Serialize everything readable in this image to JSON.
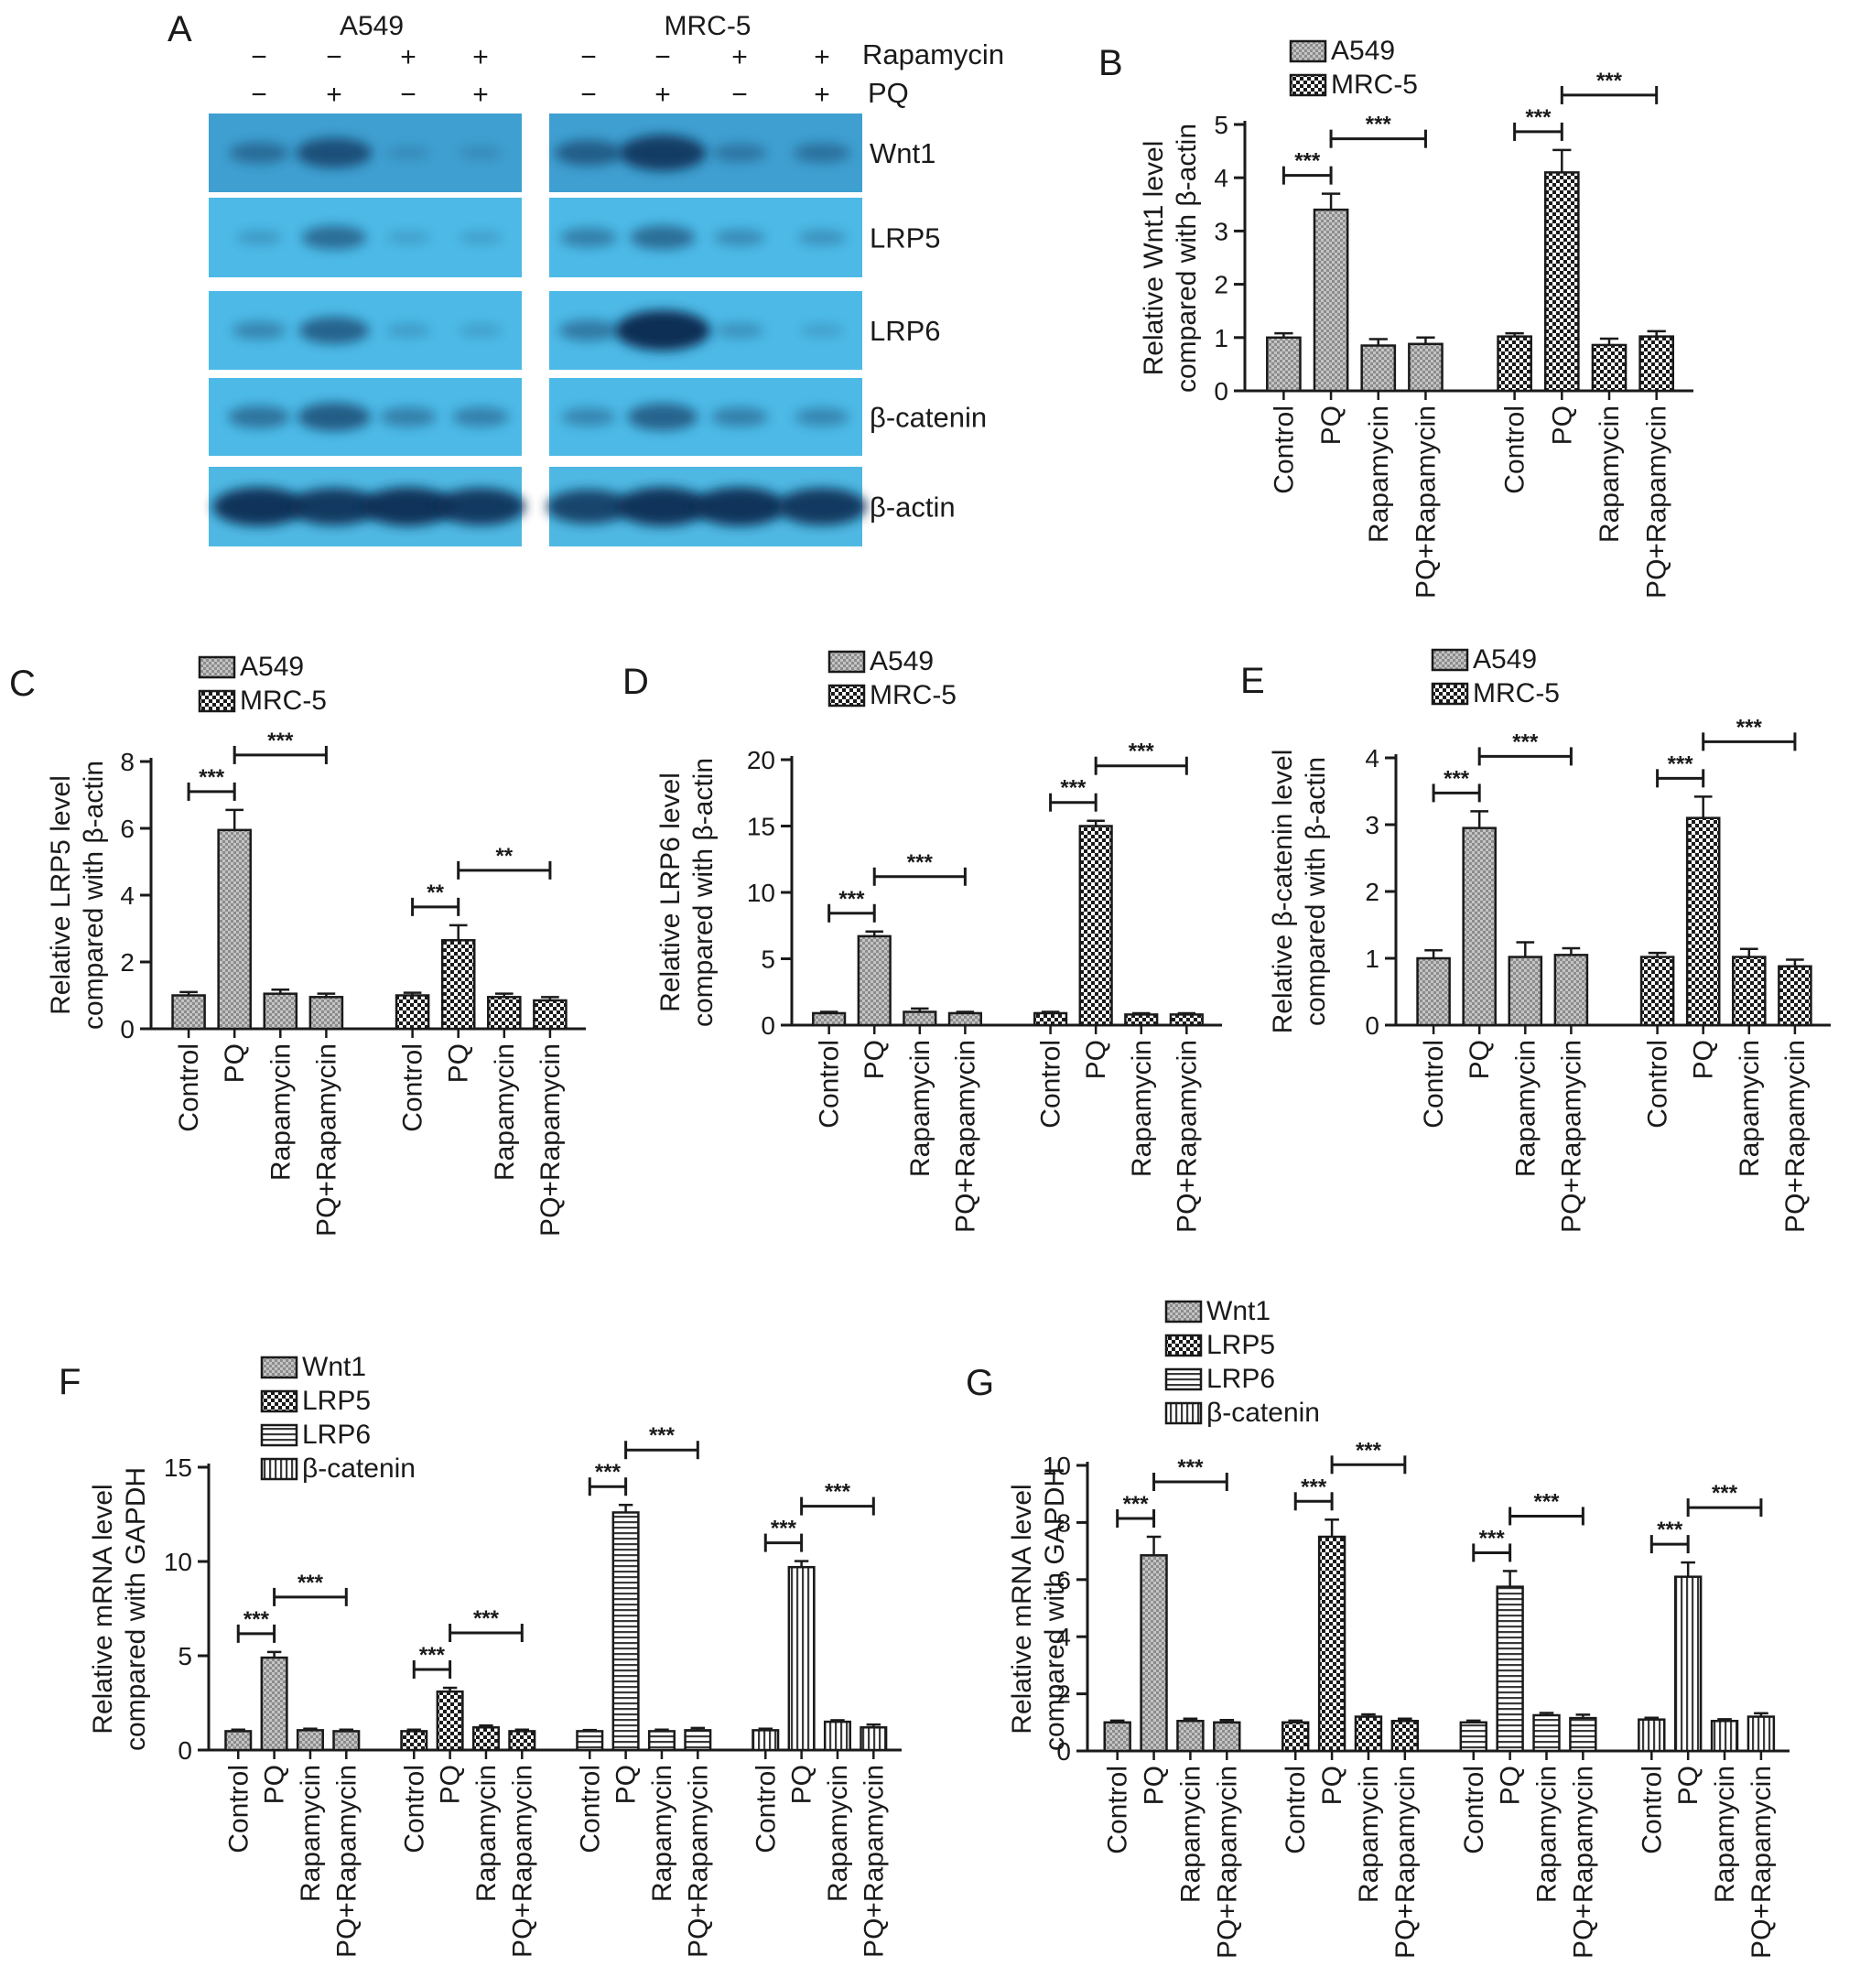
{
  "colors": {
    "bar_stroke": "#1a1a1a",
    "blot_bg": "#46b6e0",
    "blot_band": "#1a4a78"
  },
  "western_blot": {
    "panel_label": "A",
    "cell_lines": [
      "A549",
      "MRC-5"
    ],
    "rapamycin_label": "Rapamycin",
    "pq_label": "PQ",
    "rapamycin_signs": [
      "−",
      "−",
      "+",
      "+"
    ],
    "pq_signs": [
      "−",
      "+",
      "−",
      "+"
    ],
    "proteins": [
      "Wnt1",
      "LRP5",
      "LRP6",
      "β-catenin",
      "β-actin"
    ],
    "band_intensity": {
      "A549": [
        [
          0.35,
          0.65,
          0.05,
          0.05
        ],
        [
          0.1,
          0.45,
          0.05,
          0.05
        ],
        [
          0.25,
          0.55,
          0.08,
          0.05
        ],
        [
          0.4,
          0.6,
          0.3,
          0.3
        ],
        [
          0.95,
          0.9,
          0.95,
          0.9
        ]
      ],
      "MRC-5": [
        [
          0.5,
          0.85,
          0.25,
          0.3
        ],
        [
          0.3,
          0.45,
          0.2,
          0.15
        ],
        [
          0.35,
          1.0,
          0.15,
          0.05
        ],
        [
          0.25,
          0.55,
          0.3,
          0.25
        ],
        [
          0.8,
          0.95,
          0.95,
          0.9
        ]
      ]
    }
  },
  "chart_data": [
    {
      "panel": "B",
      "type": "bar",
      "ylabel_line1": "Relative Wnt1 level",
      "ylabel_line2": "compared with β-actin",
      "ylim": [
        0,
        5
      ],
      "yticks": [
        0,
        1,
        2,
        3,
        4,
        5
      ],
      "categories": [
        "Control",
        "PQ",
        "Rapamycin",
        "PQ+Rapamycin"
      ],
      "series": [
        {
          "name": "A549",
          "values": [
            1.0,
            3.4,
            0.85,
            0.88
          ],
          "errors": [
            0.08,
            0.3,
            0.12,
            0.12
          ]
        },
        {
          "name": "MRC-5",
          "values": [
            1.02,
            4.1,
            0.86,
            1.02
          ],
          "errors": [
            0.06,
            0.42,
            0.12,
            0.1
          ]
        }
      ],
      "significance": [
        {
          "group": 0,
          "from": 0,
          "to": 1,
          "label": "***",
          "level": 0
        },
        {
          "group": 0,
          "from": 1,
          "to": 3,
          "label": "***",
          "level": 1
        },
        {
          "group": 1,
          "from": 0,
          "to": 1,
          "label": "***",
          "level": 0
        },
        {
          "group": 1,
          "from": 1,
          "to": 3,
          "label": "***",
          "level": 1
        }
      ]
    },
    {
      "panel": "C",
      "type": "bar",
      "ylabel_line1": "Relative LRP5 level",
      "ylabel_line2": "compared with β-actin",
      "ylim": [
        0,
        8
      ],
      "yticks": [
        0,
        2,
        4,
        6,
        8
      ],
      "categories": [
        "Control",
        "PQ",
        "Rapamycin",
        "PQ+Rapamycin"
      ],
      "series": [
        {
          "name": "A549",
          "values": [
            1.0,
            5.95,
            1.05,
            0.95
          ],
          "errors": [
            0.1,
            0.6,
            0.12,
            0.1
          ]
        },
        {
          "name": "MRC-5",
          "values": [
            1.0,
            2.65,
            0.95,
            0.85
          ],
          "errors": [
            0.08,
            0.45,
            0.1,
            0.1
          ]
        }
      ],
      "significance": [
        {
          "group": 0,
          "from": 0,
          "to": 1,
          "label": "***",
          "level": 0
        },
        {
          "group": 0,
          "from": 1,
          "to": 3,
          "label": "***",
          "level": 1
        },
        {
          "group": 1,
          "from": 0,
          "to": 1,
          "label": "**",
          "level": 0
        },
        {
          "group": 1,
          "from": 1,
          "to": 3,
          "label": "**",
          "level": 1
        }
      ]
    },
    {
      "panel": "D",
      "type": "bar",
      "ylabel_line1": "Relative LRP6 level",
      "ylabel_line2": "compared with β-actin",
      "ylim": [
        0,
        20
      ],
      "yticks": [
        0,
        5,
        10,
        15,
        20
      ],
      "categories": [
        "Control",
        "PQ",
        "Rapamycin",
        "PQ+Rapamycin"
      ],
      "series": [
        {
          "name": "A549",
          "values": [
            0.9,
            6.7,
            1.0,
            0.9
          ],
          "errors": [
            0.1,
            0.35,
            0.25,
            0.1
          ]
        },
        {
          "name": "MRC-5",
          "values": [
            0.9,
            15.0,
            0.8,
            0.8
          ],
          "errors": [
            0.1,
            0.4,
            0.1,
            0.1
          ]
        }
      ],
      "significance": [
        {
          "group": 0,
          "from": 0,
          "to": 1,
          "label": "***",
          "level": 0
        },
        {
          "group": 0,
          "from": 1,
          "to": 3,
          "label": "***",
          "level": 1
        },
        {
          "group": 1,
          "from": 0,
          "to": 1,
          "label": "***",
          "level": 0
        },
        {
          "group": 1,
          "from": 1,
          "to": 3,
          "label": "***",
          "level": 1
        }
      ]
    },
    {
      "panel": "E",
      "type": "bar",
      "ylabel_line1": "Relative β-catenin level",
      "ylabel_line2": "compared with β-actin",
      "ylim": [
        0,
        4
      ],
      "yticks": [
        0,
        1,
        2,
        3,
        4
      ],
      "categories": [
        "Control",
        "PQ",
        "Rapamycin",
        "PQ+Rapamycin"
      ],
      "series": [
        {
          "name": "A549",
          "values": [
            1.0,
            2.95,
            1.02,
            1.05
          ],
          "errors": [
            0.12,
            0.25,
            0.22,
            0.1
          ]
        },
        {
          "name": "MRC-5",
          "values": [
            1.02,
            3.1,
            1.02,
            0.88
          ],
          "errors": [
            0.06,
            0.32,
            0.12,
            0.1
          ]
        }
      ],
      "significance": [
        {
          "group": 0,
          "from": 0,
          "to": 1,
          "label": "***",
          "level": 0
        },
        {
          "group": 0,
          "from": 1,
          "to": 3,
          "label": "***",
          "level": 1
        },
        {
          "group": 1,
          "from": 0,
          "to": 1,
          "label": "***",
          "level": 0
        },
        {
          "group": 1,
          "from": 1,
          "to": 3,
          "label": "***",
          "level": 1
        }
      ]
    },
    {
      "panel": "F",
      "type": "bar",
      "ylabel_line1": "Relative mRNA level",
      "ylabel_line2": "compared with GAPDH",
      "ylim": [
        0,
        15
      ],
      "yticks": [
        0,
        5,
        10,
        15
      ],
      "categories": [
        "Control",
        "PQ",
        "Rapamycin",
        "PQ+Rapamycin"
      ],
      "series": [
        {
          "name": "Wnt1",
          "values": [
            1.0,
            4.9,
            1.05,
            1.0
          ],
          "errors": [
            0.08,
            0.3,
            0.08,
            0.08
          ]
        },
        {
          "name": "LRP5",
          "values": [
            1.0,
            3.1,
            1.2,
            1.0
          ],
          "errors": [
            0.08,
            0.2,
            0.1,
            0.08
          ]
        },
        {
          "name": "LRP6",
          "values": [
            1.0,
            12.6,
            1.0,
            1.05
          ],
          "errors": [
            0.06,
            0.4,
            0.08,
            0.12
          ]
        },
        {
          "name": "β-catenin",
          "values": [
            1.05,
            9.7,
            1.5,
            1.2
          ],
          "errors": [
            0.08,
            0.32,
            0.08,
            0.15
          ]
        }
      ],
      "significance": [
        {
          "group": 0,
          "from": 0,
          "to": 1,
          "label": "***",
          "level": 0
        },
        {
          "group": 0,
          "from": 1,
          "to": 3,
          "label": "***",
          "level": 1
        },
        {
          "group": 1,
          "from": 0,
          "to": 1,
          "label": "***",
          "level": 0
        },
        {
          "group": 1,
          "from": 1,
          "to": 3,
          "label": "***",
          "level": 1
        },
        {
          "group": 2,
          "from": 0,
          "to": 1,
          "label": "***",
          "level": 0
        },
        {
          "group": 2,
          "from": 1,
          "to": 3,
          "label": "***",
          "level": 1
        },
        {
          "group": 3,
          "from": 0,
          "to": 1,
          "label": "***",
          "level": 0
        },
        {
          "group": 3,
          "from": 1,
          "to": 3,
          "label": "***",
          "level": 1
        }
      ]
    },
    {
      "panel": "G",
      "type": "bar",
      "ylabel_line1": "Relative mRNA level",
      "ylabel_line2": "compared with GAPDH",
      "ylim": [
        0,
        10
      ],
      "yticks": [
        0,
        2,
        4,
        6,
        8,
        10
      ],
      "categories": [
        "Control",
        "PQ",
        "Rapamycin",
        "PQ+Rapamycin"
      ],
      "series": [
        {
          "name": "Wnt1",
          "values": [
            1.0,
            6.85,
            1.05,
            1.0
          ],
          "errors": [
            0.06,
            0.65,
            0.08,
            0.08
          ]
        },
        {
          "name": "LRP5",
          "values": [
            1.0,
            7.5,
            1.2,
            1.05
          ],
          "errors": [
            0.06,
            0.6,
            0.08,
            0.08
          ]
        },
        {
          "name": "LRP6",
          "values": [
            1.0,
            5.75,
            1.25,
            1.15
          ],
          "errors": [
            0.06,
            0.55,
            0.08,
            0.12
          ]
        },
        {
          "name": "β-catenin",
          "values": [
            1.1,
            6.1,
            1.05,
            1.2
          ],
          "errors": [
            0.06,
            0.5,
            0.06,
            0.12
          ]
        }
      ],
      "significance": [
        {
          "group": 0,
          "from": 0,
          "to": 1,
          "label": "***",
          "level": 0
        },
        {
          "group": 0,
          "from": 1,
          "to": 3,
          "label": "***",
          "level": 1
        },
        {
          "group": 1,
          "from": 0,
          "to": 1,
          "label": "***",
          "level": 0
        },
        {
          "group": 1,
          "from": 1,
          "to": 3,
          "label": "***",
          "level": 1
        },
        {
          "group": 2,
          "from": 0,
          "to": 1,
          "label": "***",
          "level": 0
        },
        {
          "group": 2,
          "from": 1,
          "to": 3,
          "label": "***",
          "level": 1
        },
        {
          "group": 3,
          "from": 0,
          "to": 1,
          "label": "***",
          "level": 0
        },
        {
          "group": 3,
          "from": 1,
          "to": 3,
          "label": "***",
          "level": 1
        }
      ]
    }
  ]
}
